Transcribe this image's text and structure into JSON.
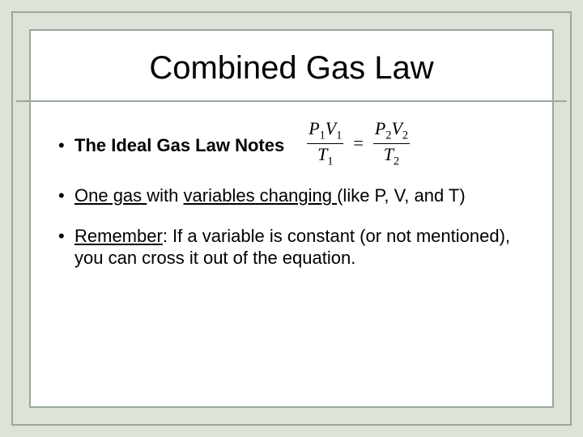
{
  "slide": {
    "title": "Combined Gas Law",
    "background_color": "#dde3d9",
    "border_color": "#9aa89a",
    "panel_color": "#ffffff",
    "title_fontsize": 40,
    "body_fontsize": 22
  },
  "bullets": {
    "b1_bold": "The Ideal Gas Law Notes",
    "b2_u1": "One gas ",
    "b2_mid": "with ",
    "b2_u2": "variables changing ",
    "b2_tail": "(like P, V, and T)",
    "b3_u": "Remember",
    "b3_rest": ": If a variable is constant (or not mentioned), you can cross it out of the equation."
  },
  "equation": {
    "left_num_p": "P",
    "left_num_psub": "1",
    "left_num_v": "V",
    "left_num_vsub": "1",
    "left_den_t": "T",
    "left_den_tsub": "1",
    "op": "=",
    "right_num_p": "P",
    "right_num_psub": "2",
    "right_num_v": "V",
    "right_num_vsub": "2",
    "right_den_t": "T",
    "right_den_tsub": "2"
  }
}
